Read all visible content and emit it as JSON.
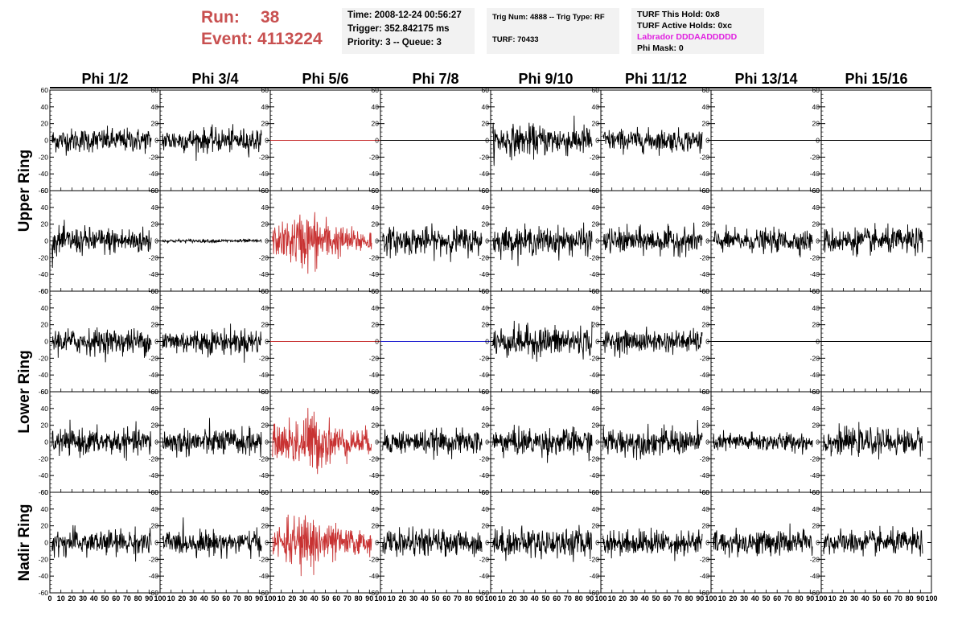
{
  "run": {
    "run_label": "Run:",
    "run_value": "38",
    "event_label": "Event:",
    "event_value": "4113224"
  },
  "info1": {
    "time": "Time: 2008-12-24 00:56:27",
    "trigger": "Trigger: 352.842175 ms",
    "priority": "Priority: 3 -- Queue: 3"
  },
  "info2": {
    "trig": "Trig Num: 4888 -- Trig Type: RF",
    "turf": "TURF: 70433"
  },
  "info3": {
    "hold": "TURF This Hold: 0x8",
    "active": "TURF Active Holds: 0xc",
    "labrador": "Labrador DDDAADDDDD",
    "phimask": "Phi Mask: 0"
  },
  "colors": {
    "red": "#c83232",
    "blue": "#2020d0",
    "black": "#000000",
    "run_text": "#c85050",
    "labrador": "#e020e0"
  },
  "chart_data": {
    "type": "line",
    "columns": [
      "Phi 1/2",
      "Phi 3/4",
      "Phi 5/6",
      "Phi 7/8",
      "Phi 9/10",
      "Phi 11/12",
      "Phi 13/14",
      "Phi 15/16"
    ],
    "ring_labels": [
      "Upper Ring",
      "Lower Ring",
      "Nadir Ring"
    ],
    "xlim": [
      0,
      100
    ],
    "ylim": [
      -60,
      60
    ],
    "x_ticks": [
      0,
      10,
      20,
      30,
      40,
      50,
      60,
      70,
      80,
      90,
      100
    ],
    "y_ticks": [
      -60,
      -40,
      -20,
      0,
      20,
      40,
      60
    ],
    "rows": [
      {
        "ring": "Upper Ring",
        "cells": [
          {
            "style": "noise",
            "amp": 14,
            "color": "black"
          },
          {
            "style": "noise",
            "amp": 14,
            "color": "black"
          },
          {
            "style": "flat",
            "color": "red"
          },
          {
            "style": "flat",
            "color": "black"
          },
          {
            "style": "noise",
            "amp": 18,
            "color": "black"
          },
          {
            "style": "noise",
            "amp": 13,
            "color": "black"
          },
          {
            "style": "flat",
            "color": "black"
          },
          {
            "style": "flat",
            "color": "black"
          }
        ]
      },
      {
        "ring": "Upper Ring",
        "cells": [
          {
            "style": "noise",
            "amp": 16,
            "color": "black"
          },
          {
            "style": "noise",
            "amp": 2,
            "color": "black"
          },
          {
            "style": "pulse",
            "amp": 32,
            "color": "red"
          },
          {
            "style": "noise",
            "amp": 16,
            "color": "black"
          },
          {
            "style": "noise",
            "amp": 16,
            "color": "black"
          },
          {
            "style": "noise",
            "amp": 15,
            "color": "black"
          },
          {
            "style": "noise",
            "amp": 13,
            "color": "black"
          },
          {
            "style": "noise",
            "amp": 15,
            "color": "black"
          }
        ]
      },
      {
        "ring": "Lower Ring",
        "cells": [
          {
            "style": "noise",
            "amp": 15,
            "color": "black"
          },
          {
            "style": "noise",
            "amp": 15,
            "color": "black"
          },
          {
            "style": "flat",
            "color": "red"
          },
          {
            "style": "flat",
            "color": "blue"
          },
          {
            "style": "noise",
            "amp": 18,
            "color": "black"
          },
          {
            "style": "noise",
            "amp": 13,
            "color": "black"
          },
          {
            "style": "flat",
            "color": "black"
          },
          {
            "style": "flat",
            "color": "black"
          }
        ]
      },
      {
        "ring": "Lower Ring",
        "cells": [
          {
            "style": "noise",
            "amp": 15,
            "color": "black"
          },
          {
            "style": "noise",
            "amp": 16,
            "color": "black"
          },
          {
            "style": "pulse",
            "amp": 34,
            "color": "red"
          },
          {
            "style": "noise",
            "amp": 14,
            "color": "black"
          },
          {
            "style": "noise",
            "amp": 16,
            "color": "black"
          },
          {
            "style": "noise",
            "amp": 16,
            "color": "black"
          },
          {
            "style": "noise",
            "amp": 11,
            "color": "black"
          },
          {
            "style": "noise",
            "amp": 15,
            "color": "black"
          }
        ]
      },
      {
        "ring": "Nadir Ring",
        "cells": [
          {
            "style": "noise",
            "amp": 15,
            "color": "black"
          },
          {
            "style": "noise",
            "amp": 14,
            "color": "black"
          },
          {
            "style": "pulse",
            "amp": 32,
            "color": "red"
          },
          {
            "style": "noise",
            "amp": 15,
            "color": "black"
          },
          {
            "style": "noise",
            "amp": 17,
            "color": "black"
          },
          {
            "style": "noise",
            "amp": 15,
            "color": "black"
          },
          {
            "style": "noise",
            "amp": 15,
            "color": "black"
          },
          {
            "style": "noise",
            "amp": 14,
            "color": "black"
          }
        ]
      }
    ]
  }
}
